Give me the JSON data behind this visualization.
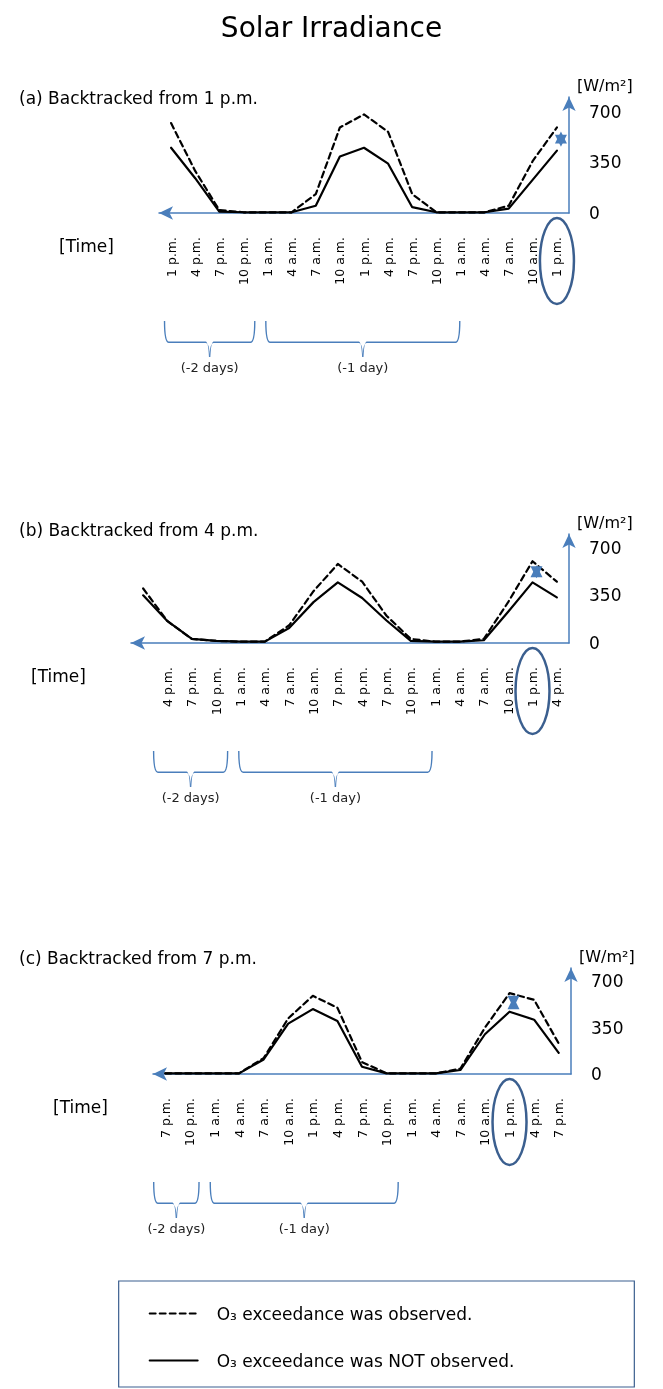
{
  "chart_data": [
    {
      "type": "line",
      "title": "Solar Irradiance",
      "subtitle": "(a) Backtracked from 1 p.m.",
      "xlabel": "[Time]",
      "ylabel": "[W/m²]",
      "categories": [
        "1 p.m.",
        "4 p.m.",
        "7 p.m.",
        "10 p.m.",
        "1 a.m.",
        "4 a.m.",
        "7 a.m.",
        "10 a.m.",
        "1 p.m.",
        "4 p.m.",
        "7 p.m.",
        "10 p.m.",
        "1 a.m.",
        "4 a.m.",
        "7 a.m.",
        "10 a.m.",
        "1 p.m."
      ],
      "series": [
        {
          "color": "#000000",
          "line_style": "dashed",
          "values": [
            620,
            290,
            20,
            5,
            5,
            5,
            130,
            590,
            680,
            560,
            130,
            5,
            5,
            5,
            50,
            360,
            590
          ]
        },
        {
          "color": "#000000",
          "line_style": "solid",
          "values": [
            450,
            240,
            10,
            5,
            5,
            5,
            50,
            390,
            450,
            340,
            40,
            5,
            5,
            5,
            30,
            230,
            430
          ]
        }
      ],
      "ylim": [
        0,
        800
      ],
      "yticks": [
        0,
        350,
        700
      ],
      "grid": false,
      "legend": false,
      "marker": "none",
      "annotations": [
        "(-2 days)",
        "(-1 day)"
      ]
    },
    {
      "type": "line",
      "subtitle": "(b) Backtracked from 4 p.m.",
      "xlabel": "[Time]",
      "ylabel": "[W/m²]",
      "categories": [
        null,
        "4 p.m.",
        "7 p.m.",
        "10 p.m.",
        "1 a.m.",
        "4 a.m.",
        "7 a.m.",
        "10 a.m.",
        "7 p.m.",
        "4 p.m.",
        "7 p.m.",
        "10 p.m.",
        "1 a.m.",
        "4 a.m.",
        "7 a.m.",
        "10 a.m.",
        "1 p.m.",
        "4 p.m."
      ],
      "series": [
        {
          "color": "#000000",
          "line_style": "dashed",
          "values": [
            400,
            160,
            30,
            15,
            10,
            10,
            130,
            380,
            580,
            450,
            200,
            30,
            10,
            10,
            30,
            300,
            600,
            450
          ]
        },
        {
          "color": "#000000",
          "line_style": "solid",
          "values": [
            350,
            160,
            30,
            15,
            10,
            10,
            110,
            300,
            445,
            330,
            165,
            15,
            10,
            10,
            20,
            230,
            445,
            335
          ]
        }
      ],
      "ylim": [
        0,
        800
      ],
      "yticks": [
        0,
        350,
        700
      ],
      "grid": false,
      "legend": false,
      "marker": "none",
      "annotations": [
        "(-2 days)",
        "(-1 day)"
      ]
    },
    {
      "type": "line",
      "subtitle": "(c) Backtracked from 7 p.m.",
      "xlabel": "[Time]",
      "ylabel": "[W/m²]",
      "categories": [
        "7 p.m.",
        "10 p.m.",
        "1 a.m.",
        "4 a.m.",
        "7 a.m.",
        "10 a.m.",
        "1 p.m.",
        "4 p.m.",
        "7 p.m.",
        "10 p.m.",
        "1 a.m.",
        "4 a.m.",
        "7 a.m.",
        "10 a.m.",
        "1 p.m.",
        "4 p.m.",
        "7 p.m."
      ],
      "series": [
        {
          "name": "O₃ exceedance was observed.",
          "color": "#000000",
          "line_style": "dashed",
          "values": [
            5,
            5,
            5,
            5,
            120,
            420,
            590,
            500,
            90,
            5,
            5,
            5,
            40,
            350,
            610,
            560,
            230
          ]
        },
        {
          "name": "O₃ exceedance was NOT observed.",
          "color": "#000000",
          "line_style": "solid",
          "values": [
            5,
            5,
            5,
            5,
            110,
            380,
            490,
            400,
            55,
            5,
            5,
            5,
            30,
            300,
            470,
            410,
            160
          ]
        }
      ],
      "ylim": [
        0,
        800
      ],
      "yticks": [
        0,
        350,
        700
      ],
      "grid": false,
      "legend": "bottom",
      "marker": "none",
      "annotations": [
        "(-2 days)",
        "(-1 day)"
      ]
    }
  ]
}
